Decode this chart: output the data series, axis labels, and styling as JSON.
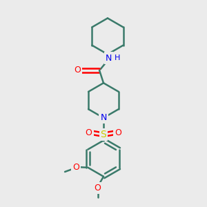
{
  "bg_color": "#ebebeb",
  "bond_color": "#3a7a6a",
  "bond_width": 1.8,
  "atom_colors": {
    "O": "#ff0000",
    "N": "#0000ee",
    "S": "#cccc00",
    "C": "#3a7a6a"
  },
  "figsize": [
    3.0,
    3.0
  ],
  "dpi": 100
}
